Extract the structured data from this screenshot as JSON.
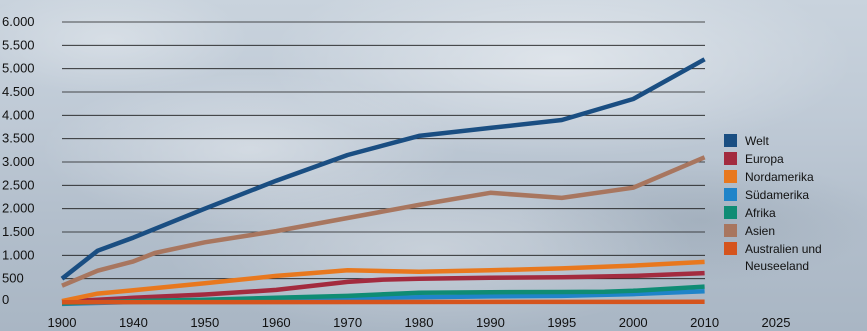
{
  "chart_data": {
    "type": "line",
    "title": "",
    "xlabel": "",
    "ylabel": "",
    "categories": [
      "1900",
      "1940",
      "1950",
      "1960",
      "1970",
      "1980",
      "1990",
      "1995",
      "2000",
      "2010",
      "2025"
    ],
    "ylim": [
      0,
      6000
    ],
    "y_ticks": [
      {
        "value": 0,
        "label": "0"
      },
      {
        "value": 500,
        "label": "500"
      },
      {
        "value": 1000,
        "label": "1.000"
      },
      {
        "value": 1500,
        "label": "1.500"
      },
      {
        "value": 2000,
        "label": "2.000"
      },
      {
        "value": 2500,
        "label": "2.500"
      },
      {
        "value": 3000,
        "label": "3.000"
      },
      {
        "value": 3500,
        "label": "3.500"
      },
      {
        "value": 4000,
        "label": "4.000"
      },
      {
        "value": 4500,
        "label": "4.500"
      },
      {
        "value": 5000,
        "label": "5.000"
      },
      {
        "value": 5500,
        "label": "5.500"
      },
      {
        "value": 6000,
        "label": "6.000"
      }
    ],
    "grid": true,
    "legend_position": "right",
    "series": [
      {
        "name": "Welt",
        "color": "#1a4e82",
        "points": [
          [
            0,
            500
          ],
          [
            0.5,
            1100
          ],
          [
            1,
            1380
          ],
          [
            2,
            2000
          ],
          [
            3,
            2600
          ],
          [
            4,
            3150
          ],
          [
            5,
            3560
          ],
          [
            6,
            3730
          ],
          [
            7,
            3900
          ],
          [
            8,
            4350
          ],
          [
            9,
            5200
          ]
        ]
      },
      {
        "name": "Europa",
        "color": "#a32b3f",
        "points": [
          [
            0,
            10
          ],
          [
            0.5,
            50
          ],
          [
            1,
            90
          ],
          [
            2,
            160
          ],
          [
            3,
            260
          ],
          [
            4,
            430
          ],
          [
            4.5,
            480
          ],
          [
            5,
            500
          ],
          [
            6,
            520
          ],
          [
            7,
            530
          ],
          [
            8,
            560
          ],
          [
            9,
            620
          ]
        ]
      },
      {
        "name": "Nordamerika",
        "color": "#e8781e",
        "points": [
          [
            0,
            20
          ],
          [
            0.5,
            180
          ],
          [
            1,
            250
          ],
          [
            2,
            400
          ],
          [
            3,
            560
          ],
          [
            3.5,
            620
          ],
          [
            4,
            680
          ],
          [
            5,
            650
          ],
          [
            6,
            680
          ],
          [
            7,
            720
          ],
          [
            8,
            780
          ],
          [
            9,
            860
          ]
        ]
      },
      {
        "name": "Südamerika",
        "color": "#1f84c9",
        "points": [
          [
            0,
            -40
          ],
          [
            1,
            0
          ],
          [
            2,
            20
          ],
          [
            3,
            50
          ],
          [
            4,
            80
          ],
          [
            5,
            100
          ],
          [
            6,
            120
          ],
          [
            7,
            130
          ],
          [
            8,
            170
          ],
          [
            9,
            230
          ]
        ]
      },
      {
        "name": "Afrika",
        "color": "#0f8c74",
        "points": [
          [
            0,
            -30
          ],
          [
            1,
            20
          ],
          [
            2,
            50
          ],
          [
            3,
            90
          ],
          [
            4,
            130
          ],
          [
            5,
            200
          ],
          [
            6,
            210
          ],
          [
            7,
            215
          ],
          [
            7.6,
            220
          ],
          [
            8,
            240
          ],
          [
            9,
            330
          ]
        ]
      },
      {
        "name": "Asien",
        "color": "#a8765f",
        "points": [
          [
            0,
            350
          ],
          [
            0.5,
            670
          ],
          [
            1,
            870
          ],
          [
            1.3,
            1050
          ],
          [
            2,
            1280
          ],
          [
            3,
            1520
          ],
          [
            4,
            1800
          ],
          [
            5,
            2080
          ],
          [
            6,
            2340
          ],
          [
            7,
            2230
          ],
          [
            8,
            2450
          ],
          [
            9,
            3100
          ]
        ]
      },
      {
        "name": "Australien und Neuseeland",
        "color": "#d5541d",
        "points": [
          [
            0,
            -5
          ],
          [
            9,
            5
          ]
        ]
      }
    ]
  }
}
